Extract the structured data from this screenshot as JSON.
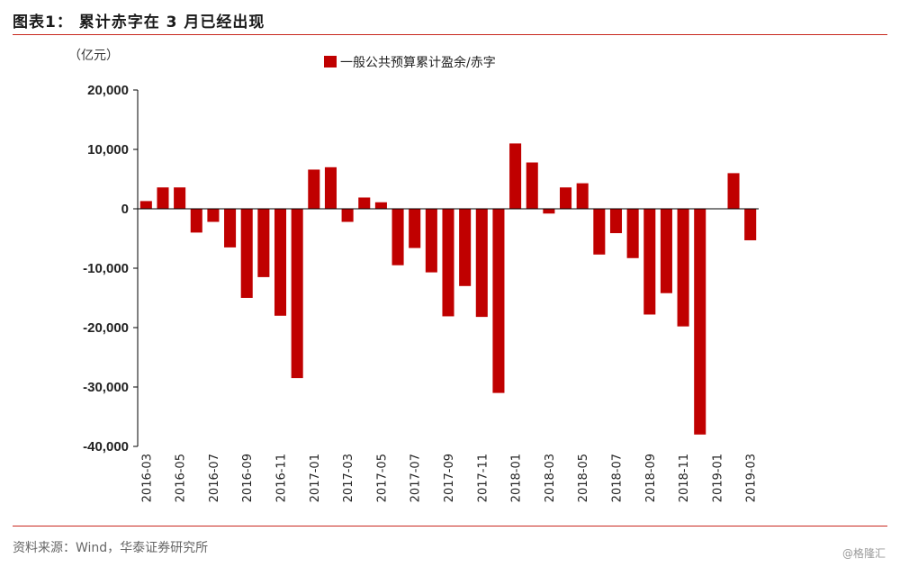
{
  "figure": {
    "title": "图表1：  累计赤字在 3 月已经出现",
    "source": "资料来源：Wind，华泰证券研究所",
    "watermark": "@格隆汇"
  },
  "colors": {
    "accent": "#c8281e",
    "bar": "#c00000",
    "axis": "#000000"
  },
  "chart_data": {
    "type": "bar",
    "unit": "（亿元）",
    "categories": [
      "2016-03",
      "2016-04",
      "2016-05",
      "2016-06",
      "2016-07",
      "2016-08",
      "2016-09",
      "2016-10",
      "2016-11",
      "2016-12",
      "2017-01",
      "2017-02",
      "2017-03",
      "2017-04",
      "2017-05",
      "2017-06",
      "2017-07",
      "2017-08",
      "2017-09",
      "2017-10",
      "2017-11",
      "2017-12",
      "2018-01",
      "2018-02",
      "2018-03",
      "2018-04",
      "2018-05",
      "2018-06",
      "2018-07",
      "2018-08",
      "2018-09",
      "2018-10",
      "2018-11",
      "2018-12",
      "2019-01",
      "2019-02",
      "2019-03"
    ],
    "tick_labels": [
      "2016-03",
      "2016-05",
      "2016-07",
      "2016-09",
      "2016-11",
      "2017-01",
      "2017-03",
      "2017-05",
      "2017-07",
      "2017-09",
      "2017-11",
      "2018-01",
      "2018-03",
      "2018-05",
      "2018-07",
      "2018-09",
      "2018-11",
      "2019-01",
      "2019-03"
    ],
    "series": [
      {
        "name": "一般公共预算累计盈余/赤字",
        "values": [
          1300,
          3600,
          3600,
          -4000,
          -2200,
          -6500,
          -15000,
          -11500,
          -18000,
          -28500,
          6600,
          7000,
          -2200,
          1900,
          1100,
          -9500,
          -6600,
          -10700,
          -18100,
          -13000,
          -18200,
          -31000,
          11000,
          7800,
          -800,
          3600,
          4300,
          -7700,
          -4100,
          -8300,
          -17800,
          -14200,
          -19800,
          -38000,
          0,
          6000,
          -5300
        ]
      }
    ],
    "ylim": [
      -40000,
      20000
    ],
    "yticks": [
      20000,
      10000,
      0,
      -10000,
      -20000,
      -30000,
      -40000
    ],
    "ytick_labels": [
      "20,000",
      "10,000",
      "0",
      "-10,000",
      "-20,000",
      "-30,000",
      "-40,000"
    ],
    "legend_position": "top-center",
    "grid": false
  }
}
